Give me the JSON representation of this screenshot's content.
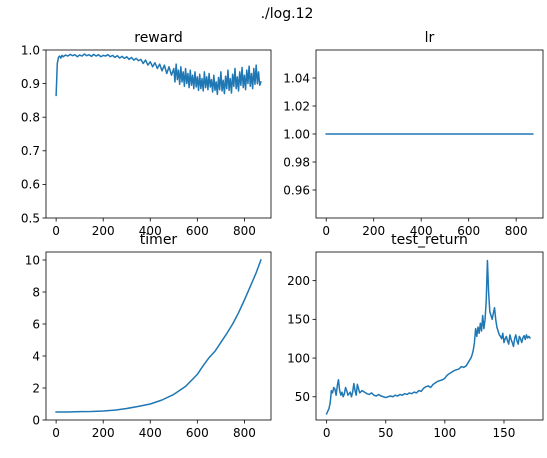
{
  "figure": {
    "suptitle": "./log.12"
  },
  "chart_data": [
    {
      "type": "line",
      "title": "reward",
      "xlabel": "",
      "ylabel": "",
      "xlim": [
        -43,
        913
      ],
      "ylim": [
        0.5,
        1.0
      ],
      "xticks": [
        0,
        200,
        400,
        600,
        800
      ],
      "yticks": [
        0.5,
        0.6,
        0.7,
        0.8,
        0.9,
        1.0
      ],
      "ytick_labels": [
        "0.5",
        "0.6",
        "0.7",
        "0.8",
        "0.9",
        "1.0"
      ],
      "series": [
        {
          "color": "#1f77b4",
          "x": [
            0,
            5,
            10,
            15,
            20,
            25,
            30,
            40,
            50,
            60,
            70,
            80,
            90,
            100,
            110,
            120,
            130,
            140,
            150,
            160,
            170,
            180,
            190,
            200,
            210,
            220,
            230,
            240,
            250,
            260,
            270,
            280,
            290,
            300,
            310,
            320,
            330,
            340,
            350,
            360,
            370,
            380,
            390,
            400,
            410,
            420,
            430,
            440,
            450,
            460,
            470,
            480,
            490,
            500,
            505,
            510,
            515,
            520,
            525,
            530,
            535,
            540,
            545,
            550,
            555,
            560,
            565,
            570,
            575,
            580,
            585,
            590,
            595,
            600,
            605,
            610,
            615,
            620,
            625,
            630,
            635,
            640,
            645,
            650,
            655,
            660,
            665,
            670,
            675,
            680,
            685,
            690,
            695,
            700,
            705,
            710,
            715,
            720,
            725,
            730,
            735,
            740,
            745,
            750,
            755,
            760,
            765,
            770,
            775,
            780,
            785,
            790,
            795,
            800,
            805,
            810,
            815,
            820,
            825,
            830,
            835,
            840,
            845,
            850,
            855,
            860,
            865,
            870
          ],
          "y": [
            0.865,
            0.96,
            0.978,
            0.982,
            0.976,
            0.984,
            0.98,
            0.985,
            0.982,
            0.987,
            0.983,
            0.986,
            0.98,
            0.985,
            0.982,
            0.988,
            0.983,
            0.986,
            0.981,
            0.987,
            0.982,
            0.986,
            0.98,
            0.984,
            0.982,
            0.986,
            0.98,
            0.984,
            0.978,
            0.983,
            0.976,
            0.981,
            0.975,
            0.98,
            0.972,
            0.978,
            0.97,
            0.975,
            0.968,
            0.972,
            0.96,
            0.97,
            0.955,
            0.965,
            0.95,
            0.962,
            0.945,
            0.958,
            0.938,
            0.955,
            0.93,
            0.95,
            0.925,
            0.945,
            0.905,
            0.958,
            0.912,
            0.94,
            0.898,
            0.95,
            0.905,
            0.935,
            0.892,
            0.945,
            0.9,
            0.93,
            0.888,
            0.94,
            0.895,
            0.925,
            0.885,
            0.935,
            0.89,
            0.92,
            0.88,
            0.928,
            0.885,
            0.915,
            0.878,
            0.935,
            0.888,
            0.92,
            0.882,
            0.93,
            0.89,
            0.912,
            0.875,
            0.925,
            0.88,
            0.905,
            0.868,
            0.918,
            0.882,
            0.935,
            0.878,
            0.91,
            0.87,
            0.922,
            0.885,
            0.94,
            0.88,
            0.915,
            0.872,
            0.928,
            0.892,
            0.945,
            0.885,
            0.92,
            0.878,
            0.935,
            0.895,
            0.948,
            0.888,
            0.925,
            0.882,
            0.94,
            0.9,
            0.952,
            0.892,
            0.93,
            0.885,
            0.945,
            0.898,
            0.955,
            0.9,
            0.935,
            0.895,
            0.905
          ]
        }
      ]
    },
    {
      "type": "line",
      "title": "lr",
      "xlabel": "",
      "ylabel": "",
      "xlim": [
        -43,
        913
      ],
      "ylim": [
        0.94,
        1.06
      ],
      "xticks": [
        0,
        200,
        400,
        600,
        800
      ],
      "yticks": [
        0.96,
        0.98,
        1.0,
        1.02,
        1.04
      ],
      "ytick_labels": [
        "0.96",
        "0.98",
        "1.00",
        "1.02",
        "1.04"
      ],
      "series": [
        {
          "color": "#1f77b4",
          "x": [
            0,
            870
          ],
          "y": [
            1.0,
            1.0
          ]
        }
      ]
    },
    {
      "type": "line",
      "title": "timer",
      "xlabel": "",
      "ylabel": "",
      "xlim": [
        -43,
        913
      ],
      "ylim": [
        0,
        10.5
      ],
      "xticks": [
        0,
        200,
        400,
        600,
        800
      ],
      "yticks": [
        0,
        2,
        4,
        6,
        8,
        10
      ],
      "ytick_labels": [
        "0",
        "2",
        "4",
        "6",
        "8",
        "10"
      ],
      "series": [
        {
          "color": "#1f77b4",
          "x": [
            0,
            50,
            100,
            150,
            200,
            250,
            300,
            350,
            400,
            450,
            500,
            550,
            600,
            625,
            650,
            675,
            700,
            725,
            750,
            775,
            800,
            825,
            850,
            870
          ],
          "y": [
            0.5,
            0.5,
            0.52,
            0.53,
            0.56,
            0.62,
            0.72,
            0.85,
            1.0,
            1.25,
            1.6,
            2.1,
            2.85,
            3.4,
            3.9,
            4.3,
            4.85,
            5.4,
            6.0,
            6.7,
            7.5,
            8.35,
            9.2,
            10.0
          ]
        }
      ]
    },
    {
      "type": "line",
      "title": "test_return",
      "xlabel": "",
      "ylabel": "",
      "xlim": [
        -9,
        183
      ],
      "ylim": [
        20,
        237
      ],
      "xticks": [
        0,
        50,
        100,
        150
      ],
      "yticks": [
        50,
        100,
        150,
        200
      ],
      "ytick_labels": [
        "50",
        "100",
        "150",
        "200"
      ],
      "series": [
        {
          "color": "#1f77b4",
          "x": [
            0,
            2,
            3,
            4,
            5,
            6,
            7,
            8,
            9,
            10,
            11,
            12,
            13,
            14,
            15,
            16,
            17,
            18,
            19,
            20,
            21,
            22,
            23,
            24,
            25,
            26,
            28,
            30,
            32,
            34,
            36,
            38,
            40,
            42,
            44,
            46,
            48,
            50,
            52,
            54,
            56,
            58,
            60,
            62,
            64,
            66,
            68,
            70,
            72,
            74,
            76,
            78,
            80,
            82,
            84,
            86,
            88,
            90,
            92,
            94,
            96,
            98,
            100,
            102,
            104,
            106,
            108,
            110,
            112,
            114,
            116,
            118,
            120,
            122,
            123,
            124,
            125,
            126,
            127,
            128,
            129,
            130,
            131,
            132,
            133,
            134,
            135,
            136,
            137,
            138,
            139,
            140,
            141,
            142,
            143,
            144,
            145,
            146,
            147,
            148,
            149,
            150,
            151,
            152,
            153,
            154,
            155,
            156,
            157,
            158,
            159,
            160,
            161,
            162,
            163,
            164,
            165,
            166,
            167,
            168,
            169,
            170,
            171,
            172
          ],
          "y": [
            28,
            35,
            42,
            58,
            55,
            62,
            60,
            52,
            64,
            72,
            58,
            52,
            56,
            50,
            54,
            62,
            58,
            52,
            54,
            56,
            50,
            56,
            67,
            58,
            52,
            66,
            55,
            58,
            56,
            54,
            53,
            55,
            52,
            51,
            53,
            51,
            50,
            49,
            50,
            51,
            50,
            52,
            51,
            53,
            52,
            54,
            53,
            55,
            54,
            56,
            55,
            58,
            57,
            61,
            63,
            64,
            62,
            66,
            68,
            70,
            71,
            72,
            74,
            78,
            80,
            82,
            84,
            85,
            86,
            89,
            88,
            90,
            95,
            100,
            104,
            110,
            120,
            138,
            128,
            140,
            132,
            145,
            135,
            155,
            138,
            150,
            175,
            226,
            185,
            160,
            155,
            150,
            158,
            165,
            150,
            140,
            135,
            130,
            128,
            125,
            132,
            120,
            125,
            128,
            122,
            118,
            130,
            124,
            120,
            115,
            125,
            130,
            122,
            118,
            128,
            125,
            120,
            126,
            129,
            124,
            130,
            126,
            128,
            126
          ]
        }
      ]
    }
  ]
}
